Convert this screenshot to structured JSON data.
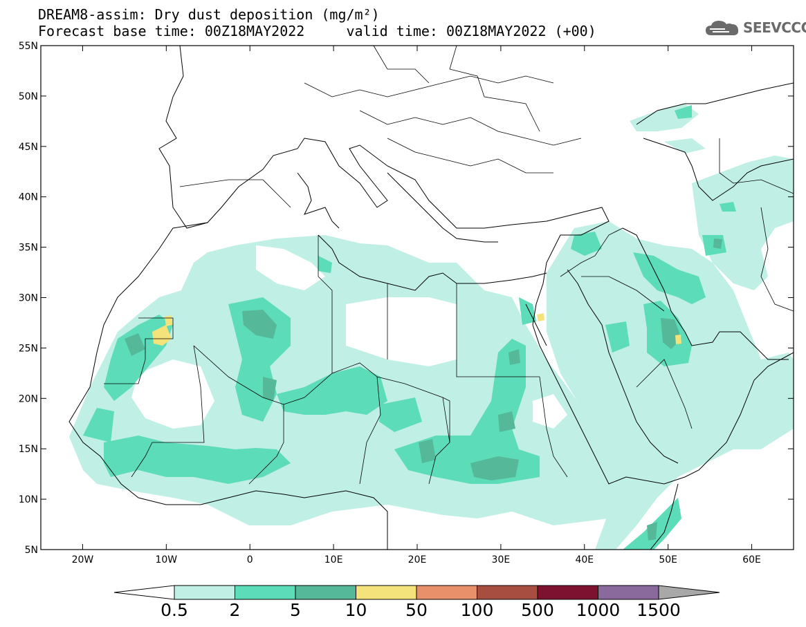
{
  "title": {
    "line1": "DREAM8-assim: Dry dust deposition (mg/m²)",
    "line2": "Forecast base time: 00Z18MAY2022     valid time: 00Z18MAY2022 (+00)"
  },
  "logo": {
    "text": "SEEVCCC",
    "icon": "cloud-icon"
  },
  "axes": {
    "lon_ticks": [
      "20W",
      "10W",
      "0",
      "10E",
      "20E",
      "30E",
      "40E",
      "50E",
      "60E"
    ],
    "lat_ticks": [
      "55N",
      "50N",
      "45N",
      "40N",
      "35N",
      "30N",
      "25N",
      "20N",
      "15N",
      "10N",
      "5N"
    ],
    "lon_range": [
      -25,
      65
    ],
    "lat_range": [
      5,
      55
    ]
  },
  "colorbar": {
    "labels": [
      "0.5",
      "2",
      "5",
      "10",
      "50",
      "100",
      "500",
      "1000",
      "1500"
    ],
    "colors": [
      "#c0efe6",
      "#5cdcb8",
      "#55b898",
      "#f4e27a",
      "#e8906a",
      "#a84e40",
      "#7d1230",
      "#8a6a9c"
    ],
    "under_color": "#ffffff",
    "over_color": "#a8a8a8"
  }
}
